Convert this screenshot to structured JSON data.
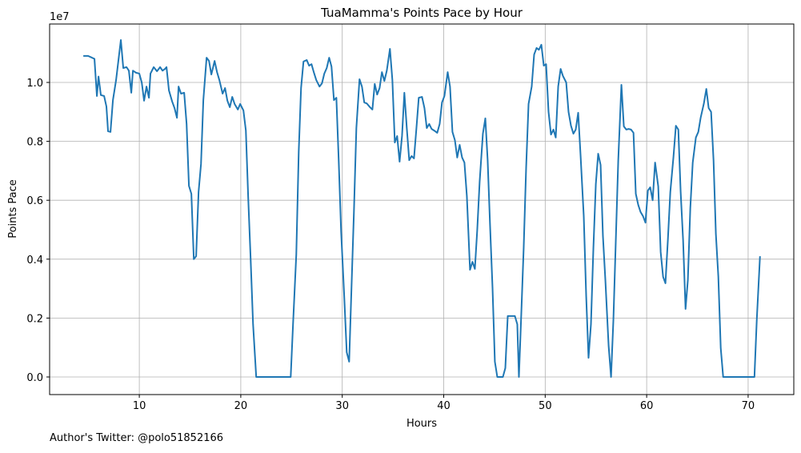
{
  "chart_data": {
    "type": "line",
    "title": "TuaMamma's Points Pace by Hour",
    "x_label": "Hours",
    "y_label": "Points Pace",
    "y_offset_label": "1e7",
    "footer": "Author's Twitter: @polo51852166",
    "color": "#1f77b4",
    "grid": true,
    "xlim": [
      1.16,
      74.5
    ],
    "ylim": [
      -598000,
      11984000
    ],
    "xticks": [
      10,
      20,
      30,
      40,
      50,
      60,
      70
    ],
    "yticks": [
      {
        "value": 0,
        "label": "0.0"
      },
      {
        "value": 2000000,
        "label": "0.2"
      },
      {
        "value": 4000000,
        "label": "0.4"
      },
      {
        "value": 6000000,
        "label": "0.6"
      },
      {
        "value": 8000000,
        "label": "0.8"
      },
      {
        "value": 10000000,
        "label": "1.0"
      }
    ],
    "x": [
      4.48,
      4.95,
      5.34,
      5.58,
      5.82,
      5.98,
      6.21,
      6.53,
      6.76,
      6.92,
      7.16,
      7.4,
      7.71,
      8.18,
      8.42,
      8.74,
      8.97,
      9.21,
      9.37,
      9.68,
      10.0,
      10.24,
      10.47,
      10.71,
      10.95,
      11.1,
      11.42,
      11.74,
      12.05,
      12.29,
      12.53,
      12.68,
      12.92,
      13.24,
      13.47,
      13.71,
      13.87,
      14.11,
      14.42,
      14.66,
      14.89,
      15.13,
      15.37,
      15.6,
      15.84,
      16.08,
      16.31,
      16.63,
      16.87,
      17.1,
      17.42,
      17.66,
      17.89,
      18.21,
      18.45,
      18.68,
      18.92,
      19.16,
      19.39,
      19.71,
      19.94,
      20.26,
      20.5,
      20.73,
      20.97,
      21.21,
      21.52,
      24.92,
      25.15,
      25.47,
      25.71,
      25.94,
      26.18,
      26.5,
      26.73,
      26.97,
      27.21,
      27.44,
      27.76,
      28.0,
      28.23,
      28.47,
      28.71,
      28.94,
      29.18,
      29.42,
      29.65,
      29.89,
      30.2,
      30.44,
      30.68,
      30.91,
      31.15,
      31.39,
      31.7,
      31.94,
      32.17,
      32.41,
      32.73,
      32.97,
      33.2,
      33.44,
      33.68,
      33.91,
      34.15,
      34.39,
      34.7,
      34.94,
      35.18,
      35.41,
      35.65,
      35.89,
      36.12,
      36.36,
      36.6,
      36.83,
      37.07,
      37.31,
      37.54,
      37.86,
      38.1,
      38.33,
      38.57,
      38.81,
      39.04,
      39.36,
      39.6,
      39.83,
      40.07,
      40.39,
      40.62,
      40.86,
      41.1,
      41.33,
      41.57,
      41.81,
      42.04,
      42.28,
      42.59,
      42.83,
      43.07,
      43.3,
      43.54,
      43.86,
      44.1,
      44.33,
      44.57,
      44.81,
      45.04,
      45.28,
      45.83,
      46.07,
      46.31,
      46.54,
      46.78,
      47.01,
      47.25,
      47.41,
      47.65,
      47.88,
      48.12,
      48.36,
      48.67,
      48.91,
      49.15,
      49.38,
      49.62,
      49.86,
      50.09,
      50.33,
      50.57,
      50.81,
      51.04,
      51.28,
      51.52,
      51.75,
      52.07,
      52.3,
      52.54,
      52.78,
      53.01,
      53.25,
      53.49,
      53.8,
      54.04,
      54.27,
      54.51,
      54.75,
      54.99,
      55.22,
      55.46,
      55.69,
      55.93,
      56.25,
      56.49,
      56.72,
      56.96,
      57.2,
      57.51,
      57.75,
      57.99,
      58.22,
      58.46,
      58.7,
      58.93,
      59.17,
      59.4,
      59.64,
      59.88,
      60.12,
      60.35,
      60.59,
      60.83,
      61.14,
      61.38,
      61.62,
      61.85,
      62.09,
      62.33,
      62.64,
      62.88,
      63.12,
      63.35,
      63.59,
      63.83,
      64.06,
      64.3,
      64.54,
      64.85,
      65.09,
      65.32,
      65.64,
      65.88,
      66.11,
      66.35,
      66.59,
      66.82,
      67.06,
      67.3,
      67.54,
      70.62,
      70.85,
      71.17
    ],
    "values": [
      10900000,
      10900000,
      10840000,
      10800000,
      9540000,
      10200000,
      9570000,
      9540000,
      9180000,
      8340000,
      8320000,
      9400000,
      10080000,
      11440000,
      10490000,
      10520000,
      10400000,
      9650000,
      10400000,
      10330000,
      10300000,
      10000000,
      9380000,
      9860000,
      9480000,
      10300000,
      10520000,
      10380000,
      10520000,
      10400000,
      10460000,
      10520000,
      9730000,
      9350000,
      9130000,
      8800000,
      9860000,
      9620000,
      9650000,
      8590000,
      6490000,
      6220000,
      4000000,
      4100000,
      6280000,
      7230000,
      9400000,
      10840000,
      10730000,
      10270000,
      10730000,
      10350000,
      10080000,
      9620000,
      9810000,
      9380000,
      9160000,
      9510000,
      9270000,
      9080000,
      9270000,
      9050000,
      8370000,
      6110000,
      4020000,
      1790000,
      0,
      0,
      1790000,
      4160000,
      7640000,
      9810000,
      10710000,
      10760000,
      10570000,
      10620000,
      10330000,
      10080000,
      9860000,
      9970000,
      10300000,
      10490000,
      10840000,
      10540000,
      9400000,
      9480000,
      7360000,
      4920000,
      2690000,
      840000,
      520000,
      3020000,
      5600000,
      8450000,
      10110000,
      9860000,
      9320000,
      9290000,
      9160000,
      9080000,
      9950000,
      9590000,
      9810000,
      10350000,
      10050000,
      10400000,
      11140000,
      10080000,
      7960000,
      8180000,
      7310000,
      8180000,
      9650000,
      8450000,
      7360000,
      7500000,
      7420000,
      8450000,
      9480000,
      9510000,
      9130000,
      8450000,
      8590000,
      8420000,
      8370000,
      8290000,
      8590000,
      9320000,
      9540000,
      10350000,
      9860000,
      8320000,
      8040000,
      7450000,
      7880000,
      7450000,
      7280000,
      6140000,
      3640000,
      3910000,
      3670000,
      4970000,
      6630000,
      8260000,
      8780000,
      7360000,
      5110000,
      3020000,
      520000,
      0,
      0,
      300000,
      2070000,
      2070000,
      2070000,
      2070000,
      1790000,
      0,
      2200000,
      4380000,
      7090000,
      9270000,
      9860000,
      10950000,
      11170000,
      11110000,
      11280000,
      10570000,
      10620000,
      9000000,
      8230000,
      8400000,
      8130000,
      9860000,
      10460000,
      10220000,
      10000000,
      9000000,
      8530000,
      8260000,
      8400000,
      8970000,
      7500000,
      5460000,
      2740000,
      650000,
      1790000,
      4380000,
      6550000,
      7580000,
      7200000,
      4780000,
      3290000,
      1060000,
      0,
      1930000,
      4650000,
      7360000,
      9920000,
      8510000,
      8400000,
      8420000,
      8400000,
      8290000,
      6220000,
      5840000,
      5600000,
      5460000,
      5240000,
      6330000,
      6440000,
      6000000,
      7280000,
      6470000,
      4240000,
      3400000,
      3180000,
      4650000,
      6280000,
      7470000,
      8530000,
      8400000,
      6280000,
      4650000,
      2310000,
      3290000,
      5730000,
      7280000,
      8130000,
      8320000,
      8800000,
      9290000,
      9780000,
      9130000,
      9000000,
      7360000,
      4860000,
      3420000,
      980000,
      0,
      0,
      1930000,
      4100000
    ]
  }
}
